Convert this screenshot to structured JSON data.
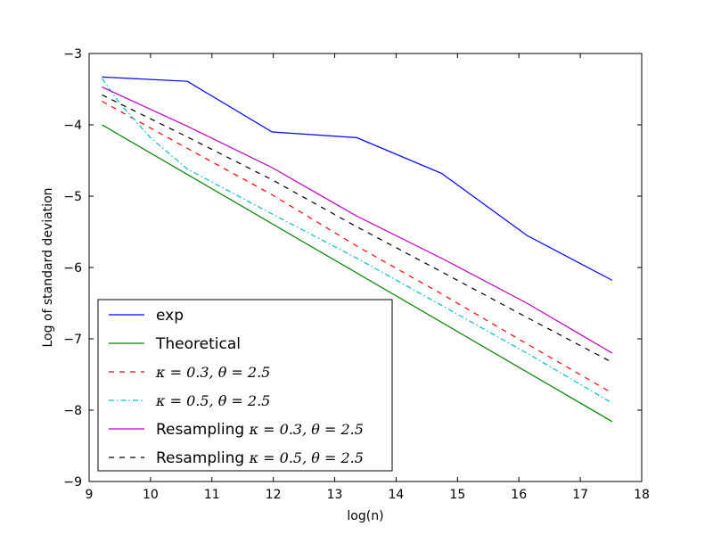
{
  "chart_data": {
    "type": "line",
    "title": "",
    "xlabel": "log(n)",
    "ylabel": "Log of standard deviation",
    "xlim": [
      9,
      18
    ],
    "ylim": [
      -9,
      -3
    ],
    "xticks": [
      9,
      10,
      11,
      12,
      13,
      14,
      15,
      16,
      17,
      18
    ],
    "yticks": [
      -9,
      -8,
      -7,
      -6,
      -5,
      -4,
      -3
    ],
    "xtick_labels": [
      "9",
      "10",
      "11",
      "12",
      "13",
      "14",
      "15",
      "16",
      "17",
      "18"
    ],
    "ytick_labels": [
      "−9",
      "−8",
      "−7",
      "−6",
      "−5",
      "−4",
      "−3"
    ],
    "grid": false,
    "legend_position": "lower-left",
    "series": [
      {
        "name": "exp",
        "legend_text": "exp",
        "legend_math": "",
        "color": "#0000ff",
        "dash": "solid",
        "x": [
          9.21,
          10.6,
          11.98,
          13.36,
          14.74,
          16.13,
          17.52
        ],
        "y": [
          -3.33,
          -3.39,
          -4.1,
          -4.18,
          -4.68,
          -5.55,
          -6.18
        ]
      },
      {
        "name": "Theoretical",
        "legend_text": "Theoretical",
        "legend_math": "",
        "color": "#008000",
        "dash": "solid",
        "x": [
          9.21,
          17.52
        ],
        "y": [
          -4.0,
          -8.16
        ]
      },
      {
        "name": "kappa 0.3 theta 2.5",
        "legend_text": "",
        "legend_math": "κ = 0.3, θ = 2.5",
        "color": "#ff0000",
        "dash": "dashed",
        "x": [
          9.21,
          10.6,
          11.98,
          13.36,
          14.74,
          16.13,
          17.52
        ],
        "y": [
          -3.67,
          -4.33,
          -4.98,
          -5.7,
          -6.37,
          -7.07,
          -7.76
        ]
      },
      {
        "name": "kappa 0.5 theta 2.5",
        "legend_text": "",
        "legend_math": "κ = 0.5, θ = 2.5",
        "color": "#00bfbf",
        "dash": "dashdot",
        "x": [
          9.21,
          9.5,
          10.0,
          10.6,
          11.98,
          13.36,
          14.74,
          16.13,
          17.52
        ],
        "y": [
          -3.35,
          -3.7,
          -4.18,
          -4.62,
          -5.25,
          -5.87,
          -6.53,
          -7.2,
          -7.9
        ]
      },
      {
        "name": "Resampling kappa 0.3 theta 2.5",
        "legend_text": "Resampling ",
        "legend_math": "κ = 0.3, θ = 2.5",
        "color": "#bf00bf",
        "dash": "solid",
        "x": [
          9.21,
          10.6,
          11.98,
          13.36,
          14.74,
          16.13,
          17.52
        ],
        "y": [
          -3.47,
          -4.02,
          -4.6,
          -5.28,
          -5.87,
          -6.5,
          -7.2
        ]
      },
      {
        "name": "Resampling kappa 0.5 theta 2.5",
        "legend_text": "Resampling ",
        "legend_math": "κ = 0.5, θ = 2.5",
        "color": "#000000",
        "dash": "dashed",
        "x": [
          9.21,
          10.6,
          11.98,
          13.36,
          14.74,
          16.13,
          17.52
        ],
        "y": [
          -3.58,
          -4.17,
          -4.77,
          -5.43,
          -6.06,
          -6.7,
          -7.33
        ]
      }
    ]
  }
}
